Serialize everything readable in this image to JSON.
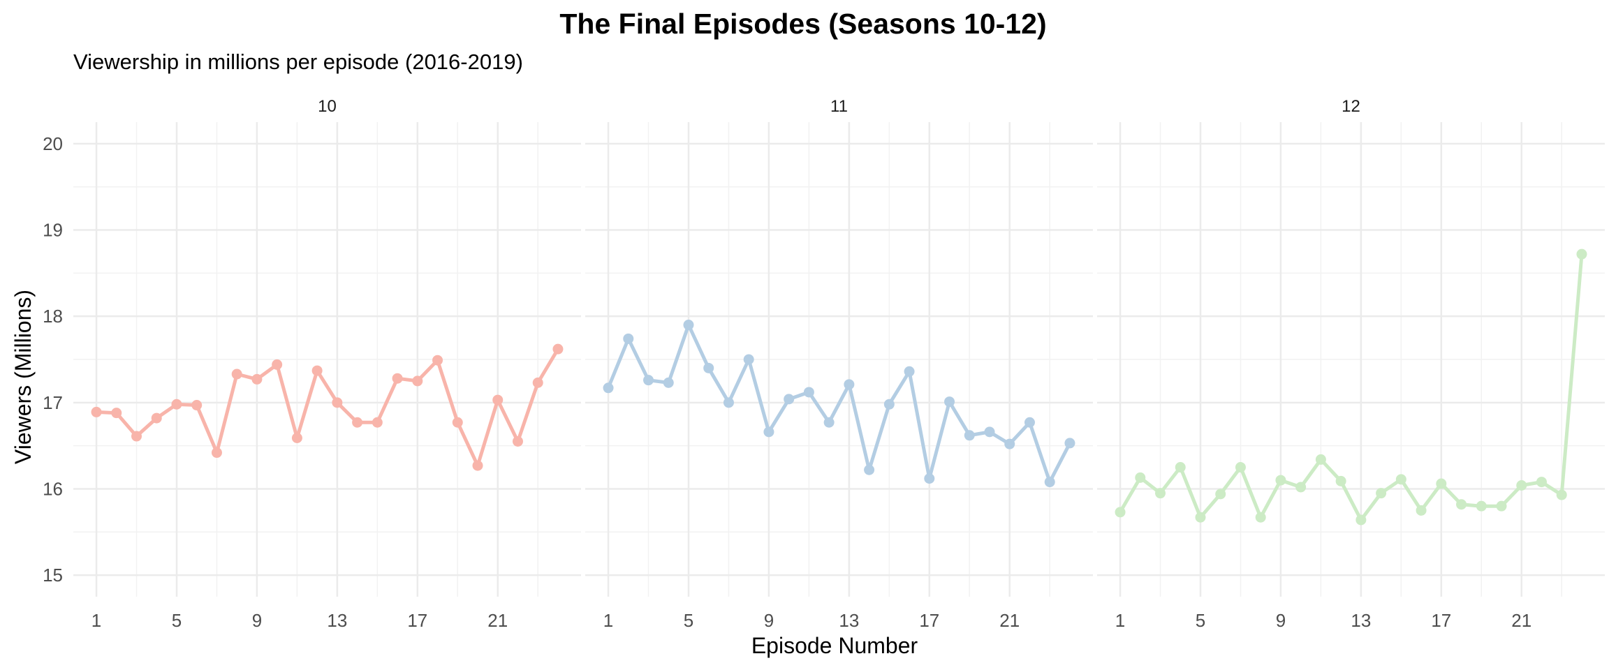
{
  "chart_data": {
    "type": "line",
    "title": "The Final Episodes (Seasons 10-12)",
    "subtitle": "Viewership in millions per episode (2016-2019)",
    "xlabel": "Episode Number",
    "ylabel": "Viewers (Millions)",
    "ylim": [
      15,
      20
    ],
    "yticks": [
      15,
      16,
      17,
      18,
      19,
      20
    ],
    "xticks": [
      1,
      5,
      9,
      13,
      17,
      21
    ],
    "grid": true,
    "legend": "none",
    "panels": [
      {
        "name": "10",
        "color": "#F8B4AA",
        "x": [
          1,
          2,
          3,
          4,
          5,
          6,
          7,
          8,
          9,
          10,
          11,
          12,
          13,
          14,
          15,
          16,
          17,
          18,
          19,
          20,
          21,
          22,
          23,
          24
        ],
        "values": [
          16.89,
          16.88,
          16.61,
          16.82,
          16.98,
          16.97,
          16.42,
          17.33,
          17.27,
          17.44,
          16.59,
          17.37,
          17.0,
          16.77,
          16.77,
          17.28,
          17.25,
          17.49,
          16.77,
          16.27,
          17.03,
          16.55,
          17.23,
          17.62
        ]
      },
      {
        "name": "11",
        "color": "#B3CDE3",
        "x": [
          1,
          2,
          3,
          4,
          5,
          6,
          7,
          8,
          9,
          10,
          11,
          12,
          13,
          14,
          15,
          16,
          17,
          18,
          19,
          20,
          21,
          22,
          23,
          24
        ],
        "values": [
          17.17,
          17.74,
          17.26,
          17.23,
          17.9,
          17.4,
          17.0,
          17.5,
          16.66,
          17.04,
          17.12,
          16.77,
          17.21,
          16.22,
          16.98,
          17.36,
          16.12,
          17.01,
          16.62,
          16.66,
          16.52,
          16.77,
          16.08,
          16.53
        ]
      },
      {
        "name": "12",
        "color": "#CCEBC5",
        "x": [
          1,
          2,
          3,
          4,
          5,
          6,
          7,
          8,
          9,
          10,
          11,
          12,
          13,
          14,
          15,
          16,
          17,
          18,
          19,
          20,
          21,
          22,
          23,
          24
        ],
        "values": [
          15.73,
          16.13,
          15.95,
          16.25,
          15.67,
          15.94,
          16.25,
          15.67,
          16.1,
          16.02,
          16.34,
          16.09,
          15.64,
          15.95,
          16.11,
          15.75,
          16.06,
          15.82,
          15.8,
          15.8,
          16.04,
          16.08,
          15.93,
          18.72
        ]
      }
    ]
  }
}
